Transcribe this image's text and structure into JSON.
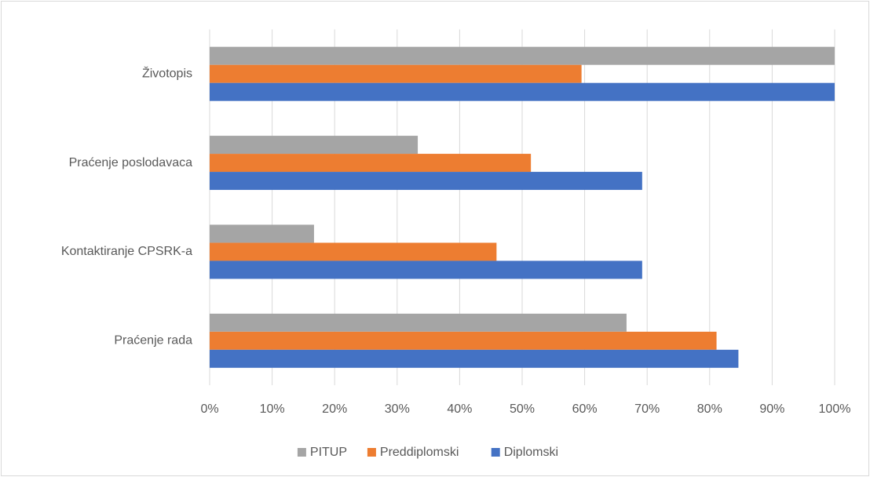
{
  "chart_data": {
    "type": "hbar",
    "categories": [
      "Životopis",
      "Praćenje poslodavaca",
      "Kontaktiranje CPSRK-a",
      "Praćenje rada"
    ],
    "series": [
      {
        "name": "PITUP",
        "color": "#a5a5a5",
        "values": [
          100,
          33.3,
          16.7,
          66.7
        ]
      },
      {
        "name": "Preddiplomski",
        "color": "#ed7d31",
        "values": [
          59.5,
          51.4,
          45.9,
          81.1
        ]
      },
      {
        "name": "Diplomski",
        "color": "#4472c4",
        "values": [
          100,
          69.2,
          69.2,
          84.6
        ]
      }
    ],
    "xlim": [
      0,
      100
    ],
    "xticks": [
      {
        "value": 0,
        "label": "0%"
      },
      {
        "value": 10,
        "label": "10%"
      },
      {
        "value": 20,
        "label": "20%"
      },
      {
        "value": 30,
        "label": "30%"
      },
      {
        "value": 40,
        "label": "40%"
      },
      {
        "value": 50,
        "label": "50%"
      },
      {
        "value": 60,
        "label": "60%"
      },
      {
        "value": 70,
        "label": "70%"
      },
      {
        "value": 80,
        "label": "80%"
      },
      {
        "value": 90,
        "label": "90%"
      },
      {
        "value": 100,
        "label": "100%"
      }
    ],
    "grid": true,
    "legend": "bottom"
  }
}
